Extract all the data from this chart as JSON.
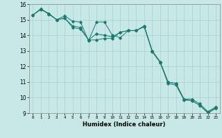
{
  "xlabel": "Humidex (Indice chaleur)",
  "ylabel": "",
  "xlim": [
    -0.5,
    23.5
  ],
  "ylim": [
    9,
    16
  ],
  "yticks": [
    9,
    10,
    11,
    12,
    13,
    14,
    15,
    16
  ],
  "xticks": [
    0,
    1,
    2,
    3,
    4,
    5,
    6,
    7,
    8,
    9,
    10,
    11,
    12,
    13,
    14,
    15,
    16,
    17,
    18,
    19,
    20,
    21,
    22,
    23
  ],
  "background_color": "#c8e8e8",
  "grid_color": "#a8d0d0",
  "line_color": "#1a7a6e",
  "series1": [
    15.3,
    15.7,
    15.4,
    15.0,
    15.1,
    14.6,
    14.5,
    13.7,
    14.1,
    14.0,
    13.9,
    14.2,
    14.3,
    14.3,
    14.6,
    13.0,
    12.3,
    11.0,
    10.9,
    9.9,
    9.9,
    9.6,
    9.1,
    9.4
  ],
  "series2": [
    15.3,
    15.7,
    15.35,
    15.0,
    15.25,
    14.9,
    14.85,
    13.65,
    14.85,
    14.85,
    14.0,
    13.85,
    14.3,
    14.3,
    14.55,
    12.95,
    12.25,
    10.9,
    10.8,
    9.85,
    9.8,
    9.5,
    9.05,
    9.35
  ],
  "series3": [
    15.3,
    15.65,
    15.4,
    15.0,
    15.1,
    14.5,
    14.4,
    13.7,
    13.7,
    13.8,
    13.8,
    14.2,
    14.3,
    14.3,
    14.6,
    13.0,
    12.3,
    11.0,
    10.9,
    9.9,
    9.8,
    9.5,
    9.0,
    9.3
  ]
}
